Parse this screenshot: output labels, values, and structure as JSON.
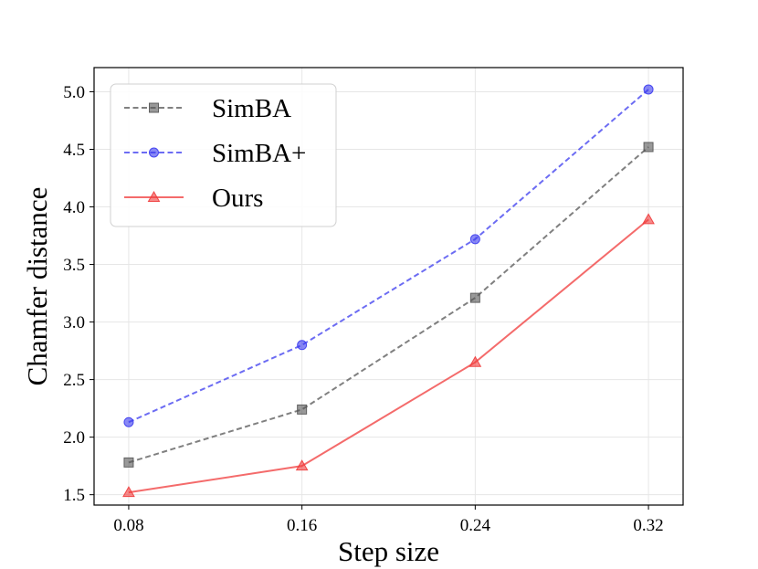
{
  "chart_data": {
    "type": "line",
    "xlabel": "Step size",
    "ylabel": "Chamfer distance",
    "x": [
      0.08,
      0.16,
      0.24,
      0.32
    ],
    "x_tick_labels": [
      "0.08",
      "0.16",
      "0.24",
      "0.32"
    ],
    "y_tick_values": [
      1.5,
      2.0,
      2.5,
      3.0,
      3.5,
      4.0,
      4.5,
      5.0
    ],
    "y_tick_labels": [
      "1.5",
      "2.0",
      "2.5",
      "3.0",
      "3.5",
      "4.0",
      "4.5",
      "5.0"
    ],
    "xlim": [
      0.064,
      0.336
    ],
    "ylim": [
      1.41,
      5.21
    ],
    "grid": true,
    "legend_position": "top-left",
    "series": [
      {
        "name": "SimBA",
        "values": [
          1.78,
          2.24,
          3.21,
          4.52
        ],
        "color": "#555555",
        "marker": "square",
        "dash": "dashed"
      },
      {
        "name": "SimBA+",
        "values": [
          2.13,
          2.8,
          3.72,
          5.02
        ],
        "color": "#3b3bef",
        "marker": "circle",
        "dash": "dashed"
      },
      {
        "name": "Ours",
        "values": [
          1.52,
          1.75,
          2.65,
          3.89
        ],
        "color": "#f03a3a",
        "marker": "triangle",
        "dash": "solid"
      }
    ]
  }
}
